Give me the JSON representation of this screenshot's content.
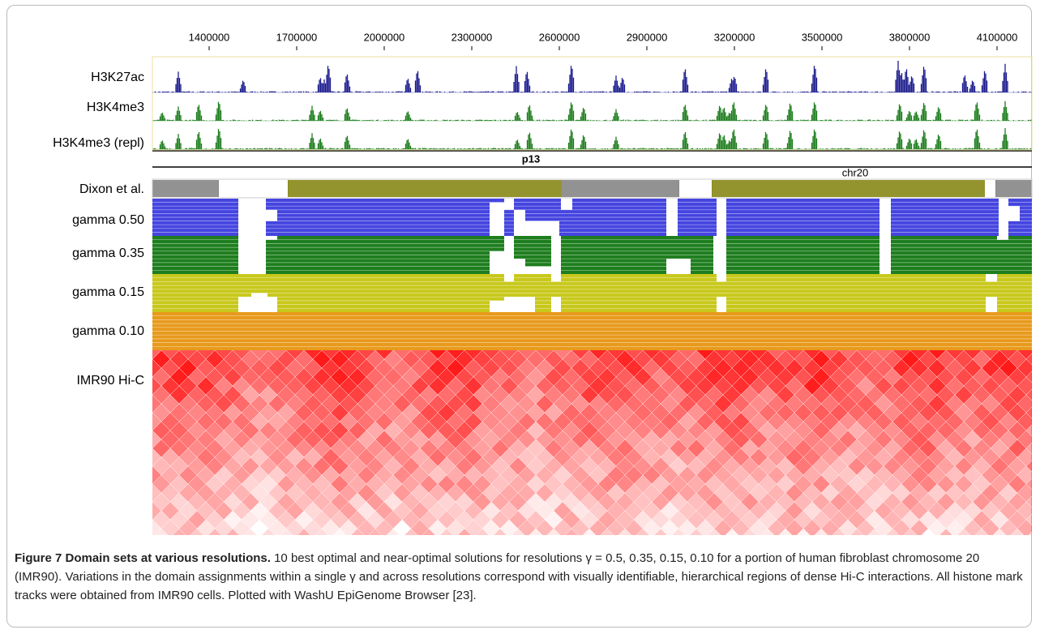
{
  "figure": {
    "axis": {
      "xlim": [
        1205556,
        4219444
      ],
      "xticks": [
        1400000,
        1700000,
        2000000,
        2300000,
        2600000,
        2900000,
        3200000,
        3500000,
        3800000,
        4100000
      ]
    },
    "tracks": [
      "H3K27ac",
      "H3K4me3",
      "H3K4me3 (repl)"
    ],
    "band": "p13",
    "chrom": "chr20",
    "domains": [
      "Dixon et al.",
      "gamma 0.50",
      "gamma 0.35",
      "gamma 0.15",
      "gamma 0.10"
    ],
    "hic": "IMR90 Hi-C"
  },
  "caption": {
    "title": "Figure 7 Domain sets at various resolutions.",
    "body": "10 best optimal and near-optimal solutions for resolutions γ = 0.5, 0.35, 0.15, 0.10 for a portion of human fibroblast chromosome 20 (IMR90). Variations in the domain assignments within a single γ and across resolutions correspond with visually identifiable, hierarchical regions of dense Hi-C interactions. All histone mark tracks were obtained from IMR90 cells. Plotted with WashU EpiGenome Browser [23]."
  }
}
